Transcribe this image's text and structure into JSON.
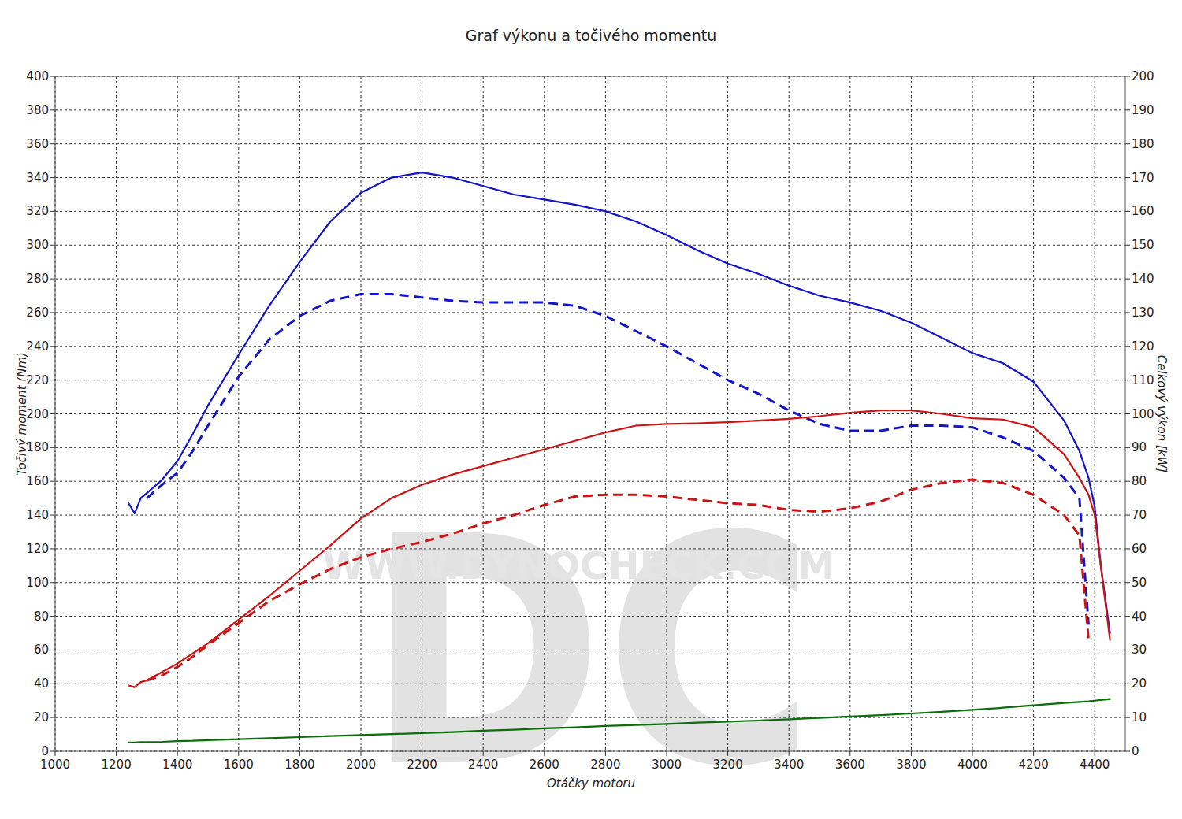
{
  "chart_data": {
    "type": "line",
    "title": "Graf výkonu a točivého momentu",
    "x_label": "Otáčky motoru",
    "y_label": "Točivý moment (Nm)",
    "y2_label": "Celkový výkon [kW]",
    "annotations": [
      {
        "text": "DC"
      },
      {
        "text": "WWW.DYNOCHECK.COM"
      }
    ],
    "x": [
      1240,
      1260,
      1280,
      1300,
      1350,
      1400,
      1450,
      1500,
      1600,
      1700,
      1800,
      1900,
      2000,
      2100,
      2200,
      2300,
      2400,
      2500,
      2600,
      2700,
      2800,
      2900,
      3000,
      3100,
      3200,
      3300,
      3400,
      3500,
      3600,
      3700,
      3800,
      3900,
      4000,
      4100,
      4200,
      4300,
      4350,
      4380,
      4400,
      4420,
      4450
    ],
    "series": [
      {
        "color": "#1414c8",
        "line_style": "solid",
        "values": [
          147,
          141,
          150,
          153,
          161,
          172,
          188,
          205,
          235,
          264,
          290,
          314,
          331,
          340,
          343,
          340,
          335,
          330,
          327,
          324,
          320,
          314,
          306,
          297,
          289,
          283,
          276,
          270,
          266,
          261,
          254,
          245,
          236,
          230,
          219,
          196,
          178,
          162,
          145,
          110,
          70
        ]
      },
      {
        "color": "#1414c8",
        "line_style": "dashed",
        "values": [
          null,
          null,
          null,
          150,
          158,
          165,
          178,
          193,
          222,
          244,
          258,
          267,
          271,
          271,
          269,
          267,
          266,
          266,
          266,
          264,
          258,
          249,
          240,
          230,
          220,
          212,
          202,
          194,
          190,
          190,
          193,
          193,
          192,
          186,
          178,
          162,
          150,
          75,
          null,
          null,
          null
        ]
      },
      {
        "color": "#cc1414",
        "line_style": "solid",
        "axis": "y2",
        "values": [
          19.5,
          19,
          20.5,
          21,
          23.5,
          26,
          29,
          32,
          39,
          46,
          53.5,
          61,
          69,
          75,
          79,
          82,
          84.5,
          87,
          89.5,
          92,
          94.5,
          96.5,
          97,
          97.2,
          97.5,
          98,
          98.5,
          99.3,
          100.3,
          101,
          101,
          100,
          98.7,
          98.3,
          96,
          88,
          81,
          76,
          70,
          55,
          33
        ]
      },
      {
        "color": "#cc1414",
        "line_style": "dashed",
        "axis": "y2",
        "values": [
          null,
          null,
          null,
          21,
          22.5,
          25,
          28,
          31.5,
          38,
          44.5,
          49.5,
          54,
          57.5,
          60,
          62,
          64.5,
          67.5,
          70,
          73,
          75.5,
          76,
          76,
          75.5,
          74.5,
          73.5,
          73,
          71.5,
          71,
          72,
          74,
          77.5,
          79.5,
          80.5,
          79.5,
          76,
          70,
          64,
          33,
          null,
          null,
          null
        ]
      },
      {
        "color": "#0b6e0b",
        "line_style": "solid",
        "axis": "y2",
        "values": [
          2.6,
          2.6,
          2.7,
          2.7,
          2.8,
          3.0,
          3.1,
          3.3,
          3.6,
          3.9,
          4.2,
          4.5,
          4.8,
          5.1,
          5.4,
          5.7,
          6.1,
          6.4,
          6.8,
          7.1,
          7.5,
          7.8,
          8.1,
          8.5,
          8.8,
          9.1,
          9.5,
          9.9,
          10.3,
          10.7,
          11.2,
          11.7,
          12.3,
          12.9,
          13.6,
          14.3,
          14.6,
          14.8,
          15.0,
          15.2,
          15.5
        ]
      }
    ],
    "xlim": [
      1000,
      4500
    ],
    "xticks": [
      1000,
      1200,
      1400,
      1600,
      1800,
      2000,
      2200,
      2400,
      2600,
      2800,
      3000,
      3200,
      3400,
      3600,
      3800,
      4000,
      4200,
      4400
    ],
    "ylim": [
      0,
      400
    ],
    "yticks": [
      0,
      20,
      40,
      60,
      80,
      100,
      120,
      140,
      160,
      180,
      200,
      220,
      240,
      260,
      280,
      300,
      320,
      340,
      360,
      380,
      400
    ],
    "y2lim": [
      0,
      200
    ],
    "y2ticks": [
      0,
      10,
      20,
      30,
      40,
      50,
      60,
      70,
      80,
      90,
      100,
      110,
      120,
      130,
      140,
      150,
      160,
      170,
      180,
      190,
      200
    ],
    "grid": true
  }
}
